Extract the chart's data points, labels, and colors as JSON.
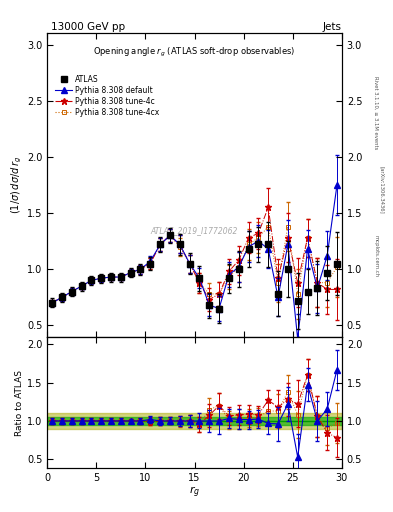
{
  "title_top": "13000 GeV pp",
  "title_right": "Jets",
  "plot_title": "Opening angle r_g (ATLAS soft-drop observables)",
  "ylabel_main": "(1/σ) dσ/d r_g",
  "ylabel_ratio": "Ratio to ATLAS",
  "xlabel": "r_g",
  "watermark": "ATLAS_2019_I1772062",
  "rivet_label": "Rivet 3.1.10, ≥ 3.1M events",
  "arxiv_label": "[arXiv:1306.3436]",
  "mcplots_label": "mcplots.cern.ch",
  "x": [
    0.5,
    1.5,
    2.5,
    3.5,
    4.5,
    5.5,
    6.5,
    7.5,
    8.5,
    9.5,
    10.5,
    11.5,
    12.5,
    13.5,
    14.5,
    15.5,
    16.5,
    17.5,
    18.5,
    19.5,
    20.5,
    21.5,
    22.5,
    23.5,
    24.5,
    25.5,
    26.5,
    27.5,
    28.5,
    29.5
  ],
  "atlas_y": [
    0.7,
    0.75,
    0.8,
    0.85,
    0.9,
    0.92,
    0.93,
    0.93,
    0.97,
    1.0,
    1.05,
    1.22,
    1.3,
    1.22,
    1.05,
    0.92,
    0.68,
    0.65,
    0.92,
    1.0,
    1.18,
    1.22,
    1.22,
    0.78,
    1.0,
    0.72,
    0.8,
    0.83,
    0.97,
    1.05
  ],
  "atlas_yerr": [
    0.04,
    0.04,
    0.04,
    0.04,
    0.04,
    0.04,
    0.04,
    0.04,
    0.04,
    0.05,
    0.06,
    0.07,
    0.07,
    0.09,
    0.09,
    0.11,
    0.11,
    0.13,
    0.13,
    0.16,
    0.16,
    0.16,
    0.2,
    0.2,
    0.25,
    0.25,
    0.2,
    0.24,
    0.24,
    0.28
  ],
  "default_y": [
    0.7,
    0.75,
    0.8,
    0.85,
    0.9,
    0.92,
    0.93,
    0.93,
    0.97,
    1.0,
    1.07,
    1.22,
    1.3,
    1.22,
    1.05,
    0.92,
    0.68,
    0.65,
    0.95,
    1.02,
    1.2,
    1.25,
    1.18,
    0.75,
    1.22,
    0.38,
    1.18,
    0.83,
    1.12,
    1.75
  ],
  "default_yerr": [
    0.03,
    0.03,
    0.03,
    0.03,
    0.03,
    0.03,
    0.03,
    0.03,
    0.03,
    0.04,
    0.05,
    0.06,
    0.06,
    0.08,
    0.08,
    0.09,
    0.1,
    0.11,
    0.11,
    0.13,
    0.14,
    0.14,
    0.17,
    0.17,
    0.22,
    0.22,
    0.17,
    0.22,
    0.22,
    0.27
  ],
  "tune4c_y": [
    0.7,
    0.75,
    0.8,
    0.85,
    0.9,
    0.92,
    0.93,
    0.93,
    0.97,
    1.0,
    1.05,
    1.22,
    1.3,
    1.22,
    1.05,
    0.88,
    0.73,
    0.78,
    0.98,
    1.08,
    1.28,
    1.32,
    1.55,
    0.92,
    1.28,
    0.88,
    1.28,
    0.88,
    0.82,
    0.82
  ],
  "tune4c_yerr": [
    0.03,
    0.03,
    0.03,
    0.03,
    0.03,
    0.03,
    0.03,
    0.03,
    0.03,
    0.04,
    0.05,
    0.06,
    0.06,
    0.08,
    0.08,
    0.09,
    0.1,
    0.11,
    0.11,
    0.13,
    0.14,
    0.14,
    0.17,
    0.17,
    0.22,
    0.22,
    0.17,
    0.22,
    0.22,
    0.27
  ],
  "tune4cx_y": [
    0.7,
    0.75,
    0.8,
    0.85,
    0.9,
    0.92,
    0.93,
    0.93,
    0.97,
    1.0,
    1.05,
    1.22,
    1.3,
    1.2,
    1.05,
    0.88,
    0.78,
    0.78,
    0.93,
    1.02,
    1.22,
    1.28,
    1.38,
    0.88,
    1.38,
    0.78,
    1.28,
    0.88,
    0.88,
    1.02
  ],
  "tune4cx_yerr": [
    0.03,
    0.03,
    0.03,
    0.03,
    0.03,
    0.03,
    0.03,
    0.03,
    0.03,
    0.04,
    0.05,
    0.06,
    0.06,
    0.08,
    0.08,
    0.09,
    0.1,
    0.11,
    0.11,
    0.13,
    0.14,
    0.14,
    0.17,
    0.17,
    0.22,
    0.22,
    0.17,
    0.22,
    0.22,
    0.27
  ],
  "atlas_color": "#000000",
  "default_color": "#0000cc",
  "tune4c_color": "#cc0000",
  "tune4cx_color": "#cc6600",
  "band_green": "#00aa00",
  "band_yellow": "#aaaa00",
  "ylim_main": [
    0.4,
    3.1
  ],
  "ylim_ratio": [
    0.38,
    2.1
  ],
  "xlim": [
    0,
    30
  ],
  "yticks_main": [
    0.5,
    1.0,
    1.5,
    2.0,
    2.5,
    3.0
  ],
  "yticks_ratio": [
    0.5,
    1.0,
    1.5,
    2.0
  ],
  "xticks": [
    0,
    5,
    10,
    15,
    20,
    25,
    30
  ]
}
